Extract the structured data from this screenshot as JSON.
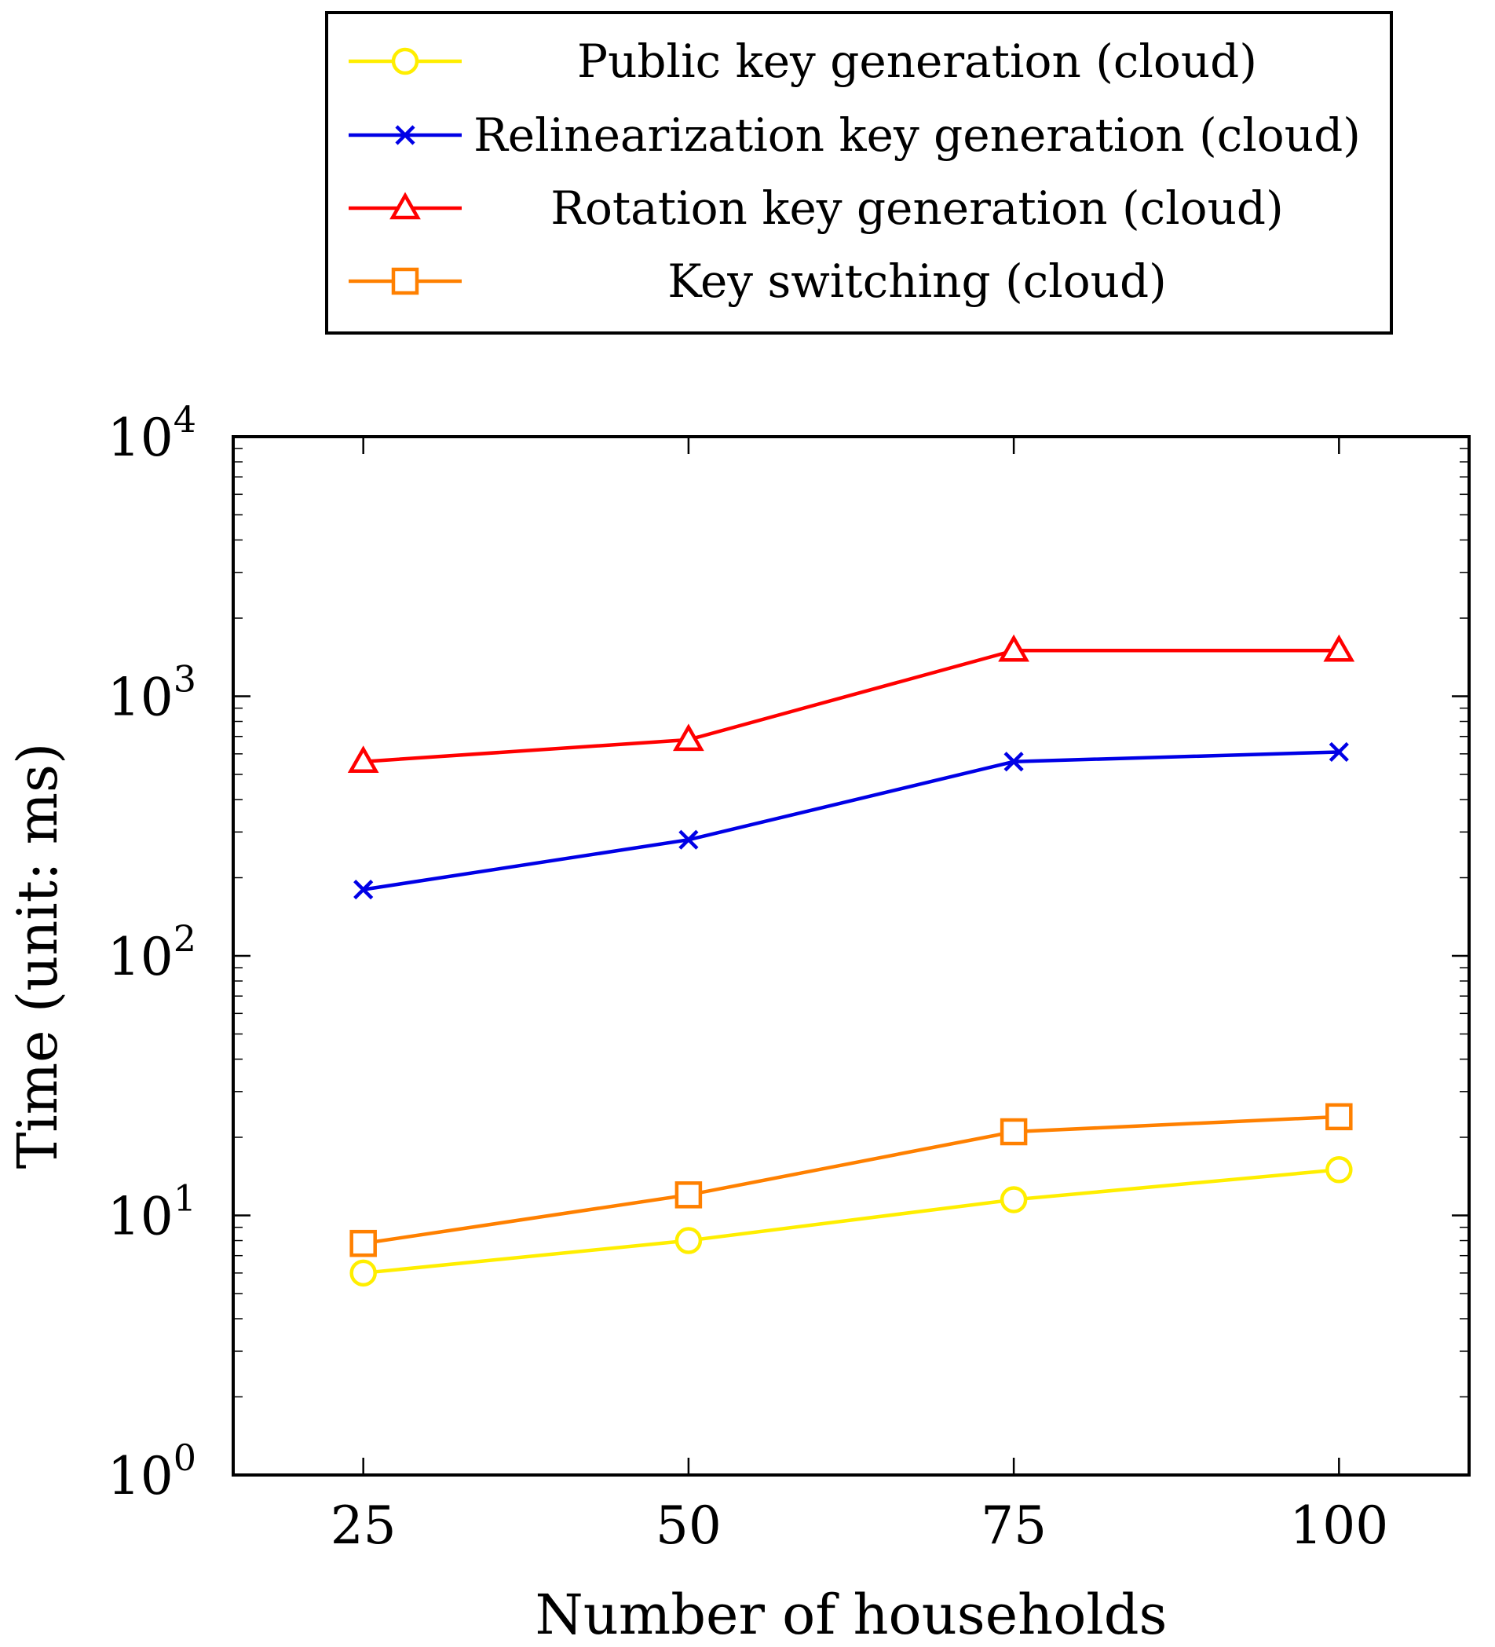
{
  "chart_data": {
    "type": "line",
    "title": "",
    "xlabel": "Number of households",
    "ylabel": "Time (unit: ms)",
    "yscale": "log",
    "ylim": [
      1,
      10000
    ],
    "xlim": [
      15,
      110
    ],
    "x": [
      25,
      50,
      75,
      100
    ],
    "x_tick_labels": [
      "25",
      "50",
      "75",
      "100"
    ],
    "y_tick_labels": [
      {
        "base": "10",
        "exp": "0"
      },
      {
        "base": "10",
        "exp": "1"
      },
      {
        "base": "10",
        "exp": "2"
      },
      {
        "base": "10",
        "exp": "3"
      },
      {
        "base": "10",
        "exp": "4"
      }
    ],
    "legend_position": "top (outside plot)",
    "series": [
      {
        "name": "Public key generation (cloud)",
        "color": "#ffee00",
        "marker": "circle",
        "values": [
          6,
          8,
          11.5,
          15
        ]
      },
      {
        "name": "Relinearization key generation (cloud)",
        "color": "#0000e6",
        "marker": "x",
        "values": [
          180,
          280,
          560,
          610
        ]
      },
      {
        "name": "Rotation key generation (cloud)",
        "color": "#ff0000",
        "marker": "triangle",
        "values": [
          560,
          680,
          1500,
          1500
        ]
      },
      {
        "name": "Key switching (cloud)",
        "color": "#ff8000",
        "marker": "square",
        "values": [
          7.8,
          12,
          21,
          24
        ]
      }
    ]
  }
}
